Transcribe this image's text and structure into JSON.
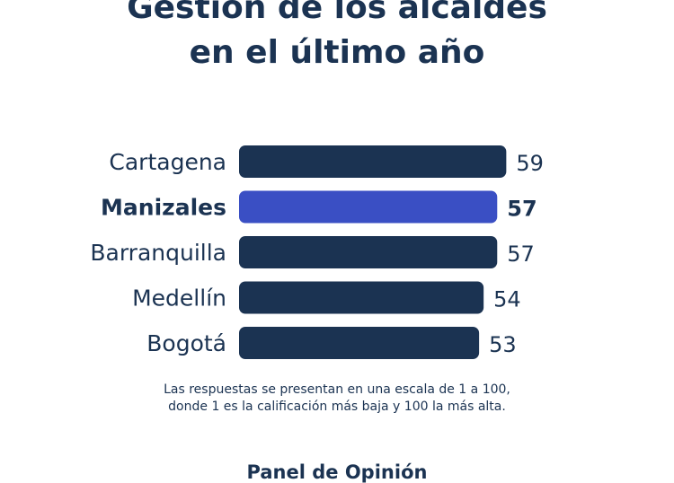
{
  "title": {
    "line1": "Gestión de los alcaldes",
    "line2": "en el último año"
  },
  "colors": {
    "bar": "#1b3352",
    "highlight": "#3a4fc4",
    "text": "#1b3352"
  },
  "chart_data": {
    "type": "bar",
    "orientation": "horizontal",
    "categories": [
      "Cartagena",
      "Manizales",
      "Barranquilla",
      "Medellín",
      "Bogotá"
    ],
    "values": [
      59,
      57,
      57,
      54,
      53
    ],
    "data_labels": [
      "59",
      "57",
      "57",
      "54",
      "53"
    ],
    "highlighted_category": "Manizales",
    "scale": [
      1,
      100
    ],
    "grid": false,
    "legend": "none"
  },
  "note": {
    "line1": "Las respuestas se presentan en una escala de 1 a 100,",
    "line2": "donde 1 es la calificación más baja y 100 la más alta."
  },
  "source": "Panel de Opinión"
}
